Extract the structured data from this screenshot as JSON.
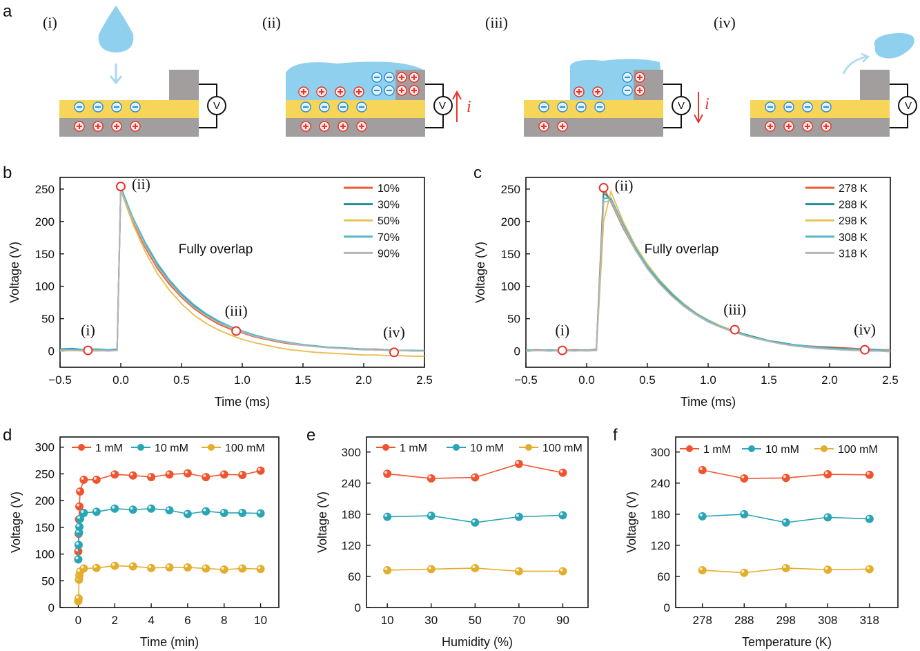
{
  "panel_labels": [
    "a",
    "b",
    "c",
    "d",
    "e",
    "f"
  ],
  "schematic": {
    "steps": [
      "(i)",
      "(ii)",
      "(iii)",
      "(iv)"
    ],
    "voltmeter": "V",
    "current": "i",
    "colors": {
      "water": "#8fd0ef",
      "dielectric": "#f7d558",
      "electrode": "#a39e9e",
      "positive": "#e8322a",
      "negative": "#2a8fd0"
    }
  },
  "chart_data": [
    {
      "panel": "b",
      "type": "line",
      "xlabel": "Time (ms)",
      "ylabel": "Voltage (V)",
      "xlim": [
        -0.5,
        2.5
      ],
      "ylim": [
        -25,
        268
      ],
      "xticks": [
        -0.5,
        0,
        0.5,
        1,
        1.5,
        2,
        2.5
      ],
      "xtick_labels": [
        "−0.5",
        "0.0",
        "0.5",
        "1.0",
        "1.5",
        "2.0",
        "2.5"
      ],
      "yticks": [
        0,
        50,
        100,
        150,
        200,
        250
      ],
      "ytick_labels": [
        "0",
        "50",
        "100",
        "150",
        "200",
        "250"
      ],
      "annotation": "Fully overlap",
      "legend": "top-right",
      "x": [
        -0.5,
        -0.4,
        -0.3,
        -0.2,
        -0.1,
        -0.03,
        0,
        0.1,
        0.2,
        0.3,
        0.4,
        0.5,
        0.6,
        0.7,
        0.8,
        0.9,
        1.0,
        1.1,
        1.2,
        1.3,
        1.4,
        1.5,
        1.6,
        1.7,
        1.8,
        1.9,
        2.0,
        2.1,
        2.2,
        2.3,
        2.4,
        2.5
      ],
      "series": [
        {
          "name": "10%",
          "color": "#f05a32",
          "values": [
            1,
            2,
            0,
            1,
            1,
            2,
            250,
            200,
            160,
            128,
            103,
            83,
            66,
            53,
            42,
            34,
            28,
            22,
            18,
            14,
            11,
            9,
            7,
            6,
            5,
            4,
            3,
            3,
            2,
            1,
            1,
            0
          ]
        },
        {
          "name": "30%",
          "color": "#1f8f99",
          "values": [
            3,
            4,
            2,
            3,
            2,
            3,
            253,
            205,
            166,
            134,
            108,
            87,
            70,
            57,
            46,
            37,
            30,
            24,
            19,
            15,
            12,
            10,
            8,
            6,
            5,
            4,
            3,
            2,
            2,
            1,
            1,
            0
          ]
        },
        {
          "name": "50%",
          "color": "#e8c157",
          "values": [
            0,
            1,
            0,
            0,
            1,
            1,
            248,
            196,
            154,
            120,
            94,
            73,
            56,
            43,
            33,
            25,
            18,
            13,
            9,
            5,
            2,
            0,
            -2,
            -3,
            -4,
            -5,
            -6,
            -6,
            -7,
            -7,
            -8,
            -8
          ]
        },
        {
          "name": "70%",
          "color": "#54b8c8",
          "values": [
            2,
            3,
            1,
            2,
            2,
            2,
            251,
            206,
            168,
            136,
            110,
            89,
            72,
            58,
            47,
            38,
            31,
            25,
            20,
            16,
            13,
            10,
            8,
            6,
            5,
            4,
            3,
            2,
            2,
            1,
            1,
            1
          ]
        },
        {
          "name": "90%",
          "color": "#b5b5b5",
          "values": [
            1,
            1,
            1,
            1,
            0,
            1,
            249,
            202,
            163,
            131,
            106,
            85,
            68,
            55,
            44,
            36,
            29,
            23,
            19,
            15,
            12,
            9,
            7,
            5,
            4,
            3,
            2,
            2,
            1,
            1,
            0,
            0
          ]
        }
      ],
      "markers": [
        {
          "label": "(i)",
          "x": -0.27,
          "y": 1
        },
        {
          "label": "(ii)",
          "x": 0,
          "y": 254
        },
        {
          "label": "(iii)",
          "x": 0.95,
          "y": 31
        },
        {
          "label": "(iv)",
          "x": 2.25,
          "y": -2
        }
      ]
    },
    {
      "panel": "c",
      "type": "line",
      "xlabel": "Time (ms)",
      "ylabel": "Voltage (V)",
      "xlim": [
        -0.5,
        2.5
      ],
      "ylim": [
        -25,
        268
      ],
      "xticks": [
        -0.5,
        0,
        0.5,
        1,
        1.5,
        2,
        2.5
      ],
      "xtick_labels": [
        "−0.5",
        "0.0",
        "0.5",
        "1.0",
        "1.5",
        "2.0",
        "2.5"
      ],
      "yticks": [
        0,
        50,
        100,
        150,
        200,
        250
      ],
      "ytick_labels": [
        "0",
        "50",
        "100",
        "150",
        "200",
        "250"
      ],
      "annotation": "Fully overlap",
      "legend": "top-right",
      "x": [
        -0.5,
        -0.4,
        -0.3,
        -0.2,
        -0.1,
        0,
        0.08,
        0.14,
        0.2,
        0.3,
        0.4,
        0.5,
        0.6,
        0.7,
        0.8,
        0.9,
        1.0,
        1.1,
        1.2,
        1.3,
        1.4,
        1.5,
        1.6,
        1.7,
        1.8,
        1.9,
        2.0,
        2.1,
        2.2,
        2.3,
        2.4,
        2.5
      ],
      "series": [
        {
          "name": "278 K",
          "color": "#f05a32",
          "values": [
            1,
            2,
            1,
            1,
            2,
            1,
            3,
            252,
            230,
            190,
            156,
            128,
            105,
            86,
            70,
            57,
            47,
            38,
            31,
            25,
            20,
            16,
            13,
            10,
            8,
            7,
            6,
            5,
            4,
            3,
            2,
            2
          ]
        },
        {
          "name": "288 K",
          "color": "#1f8f99",
          "values": [
            0,
            1,
            1,
            0,
            1,
            1,
            2,
            244,
            234,
            193,
            158,
            130,
            107,
            88,
            72,
            58,
            48,
            39,
            32,
            26,
            21,
            16,
            13,
            10,
            8,
            6,
            5,
            4,
            3,
            3,
            2,
            1
          ]
        },
        {
          "name": "298 K",
          "color": "#e8c157",
          "values": [
            1,
            1,
            0,
            1,
            1,
            0,
            1,
            200,
            246,
            200,
            163,
            134,
            110,
            90,
            73,
            59,
            48,
            39,
            32,
            25,
            20,
            16,
            12,
            9,
            7,
            5,
            4,
            3,
            2,
            2,
            1,
            1
          ]
        },
        {
          "name": "308 K",
          "color": "#54b8c8",
          "values": [
            2,
            1,
            2,
            1,
            1,
            2,
            2,
            236,
            236,
            196,
            160,
            131,
            108,
            89,
            72,
            58,
            47,
            38,
            31,
            25,
            20,
            16,
            12,
            10,
            8,
            6,
            4,
            3,
            3,
            2,
            1,
            0
          ]
        },
        {
          "name": "318 K",
          "color": "#b5b5b5",
          "values": [
            0,
            1,
            0,
            1,
            0,
            1,
            1,
            230,
            232,
            192,
            156,
            127,
            104,
            85,
            69,
            56,
            45,
            37,
            30,
            24,
            19,
            15,
            11,
            8,
            6,
            4,
            3,
            2,
            1,
            0,
            0,
            -1
          ]
        }
      ],
      "markers": [
        {
          "label": "(i)",
          "x": -0.2,
          "y": 1
        },
        {
          "label": "(ii)",
          "x": 0.14,
          "y": 252
        },
        {
          "label": "(iii)",
          "x": 1.22,
          "y": 33
        },
        {
          "label": "(iv)",
          "x": 2.29,
          "y": 2
        }
      ]
    },
    {
      "panel": "d",
      "type": "line",
      "xlabel": "Time (min)",
      "ylabel": "Voltage (V)",
      "xlim": [
        -1,
        11
      ],
      "ylim": [
        0,
        319
      ],
      "xticks": [
        0,
        2,
        4,
        6,
        8,
        10
      ],
      "xtick_labels": [
        "0",
        "2",
        "4",
        "6",
        "8",
        "10"
      ],
      "yticks": [
        0,
        50,
        100,
        150,
        200,
        250,
        300
      ],
      "ytick_labels": [
        "0",
        "50",
        "100",
        "150",
        "200",
        "250",
        "300"
      ],
      "legend": "top",
      "x": [
        0,
        0.02,
        0.04,
        0.06,
        0.1,
        0.3,
        1,
        2,
        3,
        4,
        5,
        6,
        7,
        8,
        9,
        10
      ],
      "series": [
        {
          "name": "1 mM",
          "color": "#f0542f",
          "values": [
            105,
            138,
            165,
            189,
            217,
            239,
            239,
            249,
            247,
            244,
            249,
            251,
            244,
            249,
            248,
            256
          ]
        },
        {
          "name": "10 mM",
          "color": "#2aa5b5",
          "values": [
            90,
            117,
            140,
            151,
            166,
            177,
            179,
            185,
            183,
            185,
            182,
            175,
            180,
            177,
            177,
            176
          ]
        },
        {
          "name": "100 mM",
          "color": "#e2ae2c",
          "values": [
            12,
            17,
            52,
            60,
            67,
            73,
            74,
            78,
            77,
            74,
            75,
            75,
            73,
            71,
            73,
            72
          ]
        }
      ]
    },
    {
      "panel": "e",
      "type": "line",
      "xlabel": "Humidity (%)",
      "ylabel": "Voltage (V)",
      "xlim": [
        0.5,
        101.5
      ],
      "ylim": [
        0,
        329
      ],
      "xticks": [
        10,
        30,
        50,
        70,
        90
      ],
      "xtick_labels": [
        "10",
        "30",
        "50",
        "70",
        "90"
      ],
      "yticks": [
        0,
        60,
        120,
        180,
        240,
        300
      ],
      "ytick_labels": [
        "0",
        "60",
        "120",
        "180",
        "240",
        "300"
      ],
      "legend": "top",
      "x": [
        10,
        30,
        50,
        70,
        90
      ],
      "series": [
        {
          "name": "1 mM",
          "color": "#f0542f",
          "values": [
            258,
            249,
            251,
            277,
            260
          ]
        },
        {
          "name": "10 mM",
          "color": "#2aa5b5",
          "values": [
            175,
            177,
            164,
            175,
            178
          ]
        },
        {
          "name": "100 mM",
          "color": "#e2ae2c",
          "values": [
            72,
            74,
            76,
            70,
            70
          ]
        }
      ]
    },
    {
      "panel": "f",
      "type": "line",
      "xlabel": "Temperature (K)",
      "ylabel": "Voltage (V)",
      "xlim": [
        271.6,
        324.8
      ],
      "ylim": [
        0,
        329
      ],
      "xticks": [
        278,
        288,
        298,
        308,
        318
      ],
      "xtick_labels": [
        "278",
        "288",
        "298",
        "308",
        "318"
      ],
      "yticks": [
        0,
        60,
        120,
        180,
        240,
        300
      ],
      "ytick_labels": [
        "0",
        "60",
        "120",
        "180",
        "240",
        "300"
      ],
      "legend": "top",
      "x": [
        278,
        288,
        298,
        308,
        318
      ],
      "series": [
        {
          "name": "1 mM",
          "color": "#f0542f",
          "values": [
            265,
            249,
            250,
            257,
            256
          ]
        },
        {
          "name": "10 mM",
          "color": "#2aa5b5",
          "values": [
            176,
            180,
            164,
            174,
            171
          ]
        },
        {
          "name": "100 mM",
          "color": "#e2ae2c",
          "values": [
            72,
            67,
            76,
            73,
            74
          ]
        }
      ]
    }
  ]
}
